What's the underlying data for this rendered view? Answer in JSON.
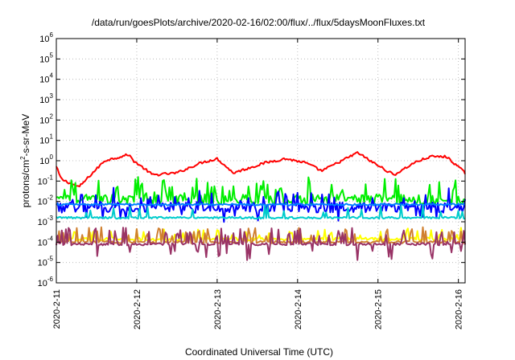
{
  "chart_data": {
    "type": "line",
    "title": "/data/run/goesPlots/archive/2020-02-16/02:00/flux/../flux/5daysMoonFluxes.txt",
    "xlabel": "Coordinated Universal Time (UTC)",
    "ylabel": "protons/cm²-s-sr-MeV",
    "ylabel_parts": {
      "a": "protons/cm",
      "sup": "2",
      "b": "-s-sr-MeV"
    },
    "y_scale": "log",
    "ylim": [
      1e-06,
      1000000.0
    ],
    "y_ticks": [
      {
        "base": "10",
        "exp": "-6",
        "value": 1e-06
      },
      {
        "base": "10",
        "exp": "-5",
        "value": 1e-05
      },
      {
        "base": "10",
        "exp": "-4",
        "value": 0.0001
      },
      {
        "base": "10",
        "exp": "-3",
        "value": 0.001
      },
      {
        "base": "10",
        "exp": "-2",
        "value": 0.01
      },
      {
        "base": "10",
        "exp": "-1",
        "value": 0.1
      },
      {
        "base": "10",
        "exp": "0",
        "value": 1
      },
      {
        "base": "10",
        "exp": "1",
        "value": 10
      },
      {
        "base": "10",
        "exp": "2",
        "value": 100
      },
      {
        "base": "10",
        "exp": "3",
        "value": 1000
      },
      {
        "base": "10",
        "exp": "4",
        "value": 10000
      },
      {
        "base": "10",
        "exp": "5",
        "value": 100000
      },
      {
        "base": "10",
        "exp": "6",
        "value": 1000000
      }
    ],
    "xlim": [
      "2020-02-11T00:00",
      "2020-02-16T02:00"
    ],
    "x_ticks": [
      "2020-2-11",
      "2020-2-12",
      "2020-2-13",
      "2020-2-14",
      "2020-2-15",
      "2020-2-16"
    ],
    "grid": true,
    "legend": "none",
    "series": [
      {
        "color": "#ff0000",
        "baseline_exp": -0.3,
        "noise": 0.06,
        "keypoints": [
          [
            0.0,
            0.0
          ],
          [
            0.06,
            -0.6
          ],
          [
            0.28,
            -1.0
          ],
          [
            0.6,
            0.3
          ],
          [
            0.9,
            0.6
          ],
          [
            0.96,
            0.3
          ],
          [
            1.2,
            -0.4
          ],
          [
            1.5,
            -0.3
          ],
          [
            1.8,
            0.2
          ],
          [
            2.0,
            0.4
          ],
          [
            2.2,
            -0.3
          ],
          [
            2.6,
            0.2
          ],
          [
            2.85,
            0.4
          ],
          [
            3.1,
            0.2
          ],
          [
            3.3,
            -0.2
          ],
          [
            3.55,
            0.3
          ],
          [
            3.75,
            0.7
          ],
          [
            3.9,
            0.3
          ],
          [
            4.2,
            -0.4
          ],
          [
            4.45,
            0.2
          ],
          [
            4.65,
            0.5
          ],
          [
            4.85,
            0.5
          ],
          [
            5.0,
            0.0
          ],
          [
            5.08,
            -0.3
          ]
        ]
      },
      {
        "color": "#00ee00",
        "baseline_exp": -1.9,
        "noise": 0.25,
        "spike_prob": 0.18,
        "spike_amp": 0.9
      },
      {
        "color": "#0000ff",
        "baseline_exp": -2.3,
        "noise": 0.25,
        "spike_prob": 0.15,
        "spike_amp": 0.8,
        "dip_prob": 0.08,
        "dip_amp": 0.6
      },
      {
        "color": "#0080ff",
        "baseline_exp": -2.15,
        "noise": 0.05
      },
      {
        "color": "#00cccc",
        "baseline_exp": -2.8,
        "noise": 0.05,
        "spike_prob": 0.08,
        "spike_amp": 0.6
      },
      {
        "color": "#ffff00",
        "baseline_exp": -3.85,
        "noise": 0.08,
        "spike_prob": 0.15,
        "spike_amp": 0.5
      },
      {
        "color": "#d08030",
        "baseline_exp": -4.0,
        "noise": 0.06,
        "spike_prob": 0.2,
        "spike_amp": 0.7
      },
      {
        "color": "#993366",
        "baseline_exp": -4.1,
        "noise": 0.06,
        "spike_prob": 0.22,
        "spike_amp": 0.8,
        "dip_prob": 0.04,
        "dip_amp": 0.8
      }
    ]
  }
}
